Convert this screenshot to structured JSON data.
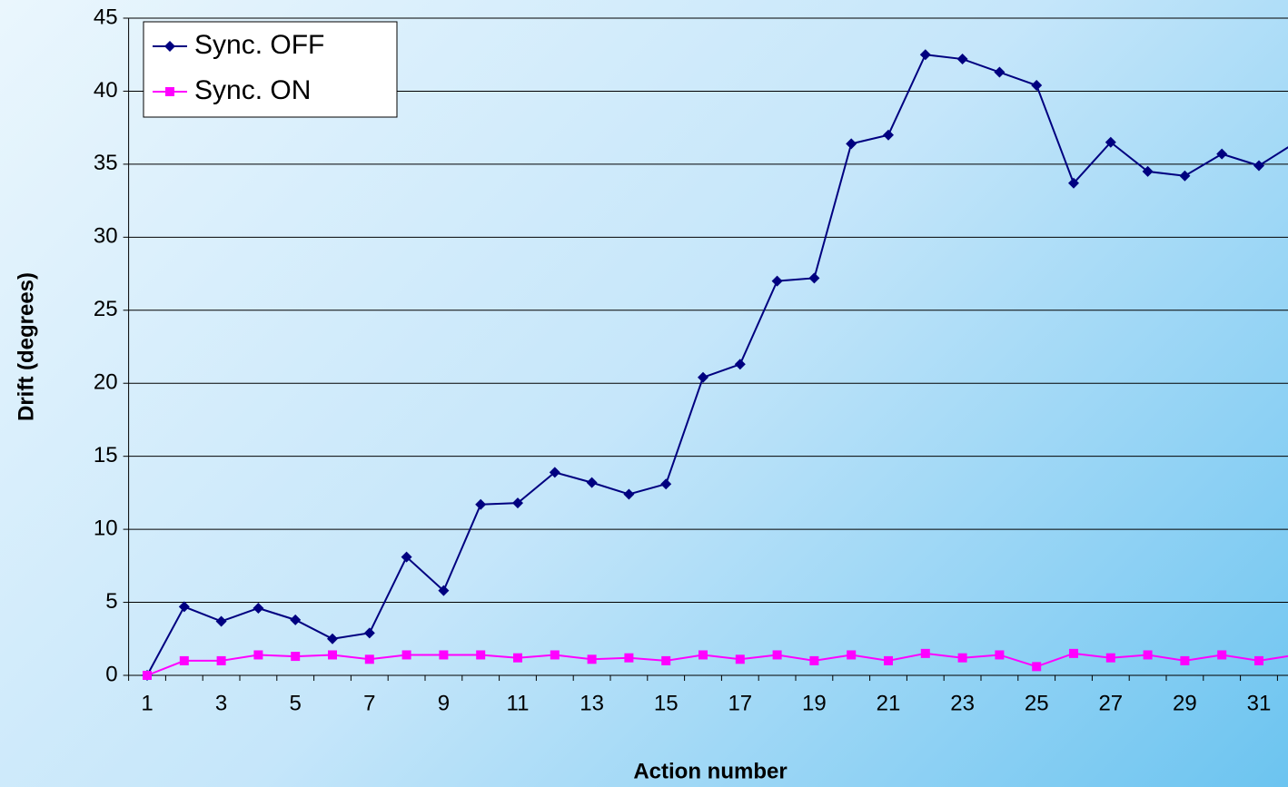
{
  "chart_data": {
    "type": "line",
    "ylabel": "Drift (degrees)",
    "xlabel": "Action number",
    "categories": [
      "1",
      null,
      "3",
      null,
      "5",
      null,
      "7",
      null,
      "9",
      null,
      "11",
      null,
      "13",
      null,
      "15",
      null,
      "17",
      null,
      "19",
      null,
      "21",
      null,
      "23",
      null,
      "25",
      null,
      "27",
      null,
      "29",
      null,
      "31",
      null
    ],
    "series": [
      {
        "name": "Sync. OFF",
        "color": "#000080",
        "marker": "diamond",
        "values": [
          0,
          4.7,
          3.7,
          4.6,
          3.8,
          2.5,
          2.9,
          8.1,
          5.8,
          11.7,
          11.8,
          13.9,
          13.2,
          12.4,
          13.1,
          20.4,
          21.3,
          27.0,
          27.2,
          36.4,
          37.0,
          42.5,
          42.2,
          41.3,
          40.4,
          33.7,
          36.5,
          34.5,
          34.2,
          35.7,
          34.9,
          36.5
        ]
      },
      {
        "name": "Sync. ON",
        "color": "#ff00ff",
        "marker": "square",
        "values": [
          0,
          1.0,
          1.0,
          1.4,
          1.3,
          1.4,
          1.1,
          1.4,
          1.4,
          1.4,
          1.2,
          1.4,
          1.1,
          1.2,
          1.0,
          1.4,
          1.1,
          1.4,
          1.0,
          1.4,
          1.0,
          1.5,
          1.2,
          1.4,
          0.6,
          1.5,
          1.2,
          1.4,
          1.0,
          1.4,
          1.0,
          1.4
        ]
      }
    ],
    "ylim": [
      0,
      45
    ],
    "yticks": [
      0,
      5,
      10,
      15,
      20,
      25,
      30,
      35,
      40,
      45
    ],
    "grid": true,
    "legend": "upper left"
  }
}
